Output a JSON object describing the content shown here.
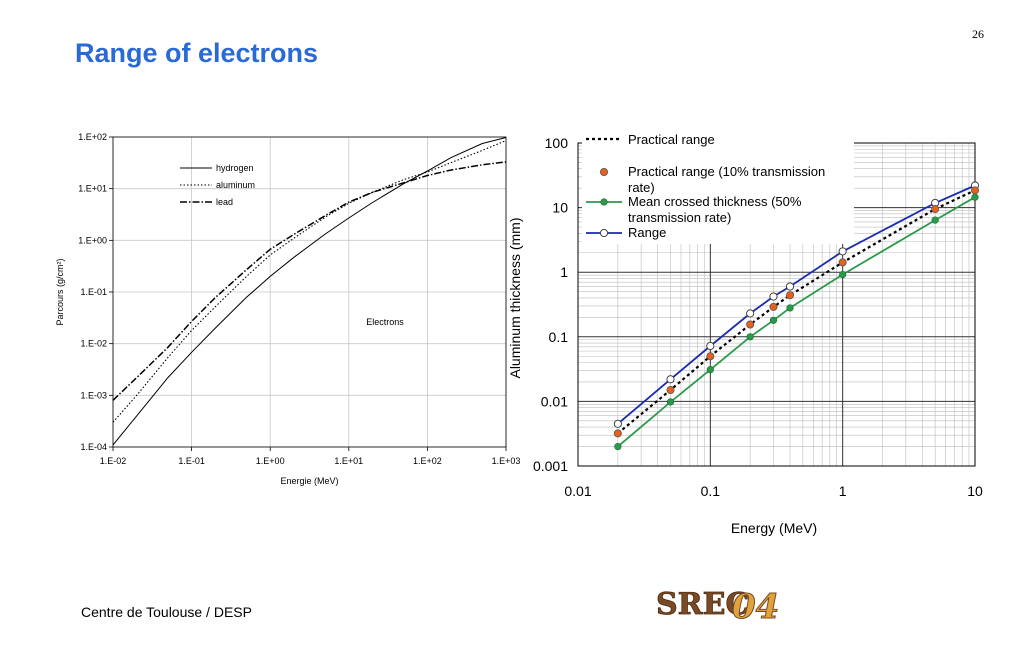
{
  "slide": {
    "title": "Range of electrons",
    "page_number": "26",
    "footer": "Centre de Toulouse / DESP",
    "logo_text": "SREC",
    "logo_numeral": "04"
  },
  "colors": {
    "title": "#2a6ad8",
    "range": "#1a2cb0",
    "mean": "#2a9a4a",
    "practical_point": "#e8601c",
    "logo_brown": "#7a4a24",
    "logo_orange": "#e0a23c"
  },
  "chart_data": [
    {
      "type": "line",
      "title": "",
      "xlabel": "Energie (MeV)",
      "ylabel": "Parcours (g/cm²)",
      "xscale": "log",
      "yscale": "log",
      "xlim": [
        0.01,
        1000
      ],
      "ylim": [
        0.0001,
        100
      ],
      "grid": true,
      "legend": "top-left",
      "annotation": "Electrons",
      "xtick_labels": [
        "1.E-02",
        "1.E-01",
        "1.E+00",
        "1.E+01",
        "1.E+02",
        "1.E+03"
      ],
      "ytick_labels": [
        "1.E-04",
        "1.E-03",
        "1.E-02",
        "1.E-01",
        "1.E+00",
        "1.E+01",
        "1.E+02"
      ],
      "series": [
        {
          "name": "hydrogen",
          "x": [
            0.01,
            0.02,
            0.05,
            0.1,
            0.2,
            0.5,
            1,
            2,
            5,
            10,
            20,
            50,
            100,
            200,
            500,
            1000
          ],
          "y": [
            0.00011,
            0.0004,
            0.0022,
            0.0068,
            0.02,
            0.079,
            0.2,
            0.47,
            1.32,
            2.7,
            5.4,
            12.5,
            22,
            40,
            75,
            98
          ]
        },
        {
          "name": "aluminum",
          "x": [
            0.01,
            0.02,
            0.05,
            0.1,
            0.2,
            0.5,
            1,
            2,
            5,
            10,
            20,
            50,
            100,
            200,
            500,
            1000
          ],
          "y": [
            0.0003,
            0.001,
            0.0054,
            0.018,
            0.052,
            0.2,
            0.52,
            1.1,
            2.8,
            5.2,
            8.5,
            15,
            21,
            32,
            55,
            85
          ]
        },
        {
          "name": "lead",
          "x": [
            0.01,
            0.02,
            0.05,
            0.1,
            0.2,
            0.5,
            1,
            2,
            5,
            10,
            20,
            50,
            100,
            200,
            500,
            1000
          ],
          "y": [
            0.0008,
            0.0022,
            0.0085,
            0.027,
            0.078,
            0.27,
            0.67,
            1.3,
            3.0,
            5.5,
            8.5,
            13,
            18,
            23,
            29,
            33
          ]
        }
      ]
    },
    {
      "type": "line",
      "title": "",
      "xlabel": "Energy (MeV)",
      "ylabel": "Aluminum thickness (mm)",
      "xscale": "log",
      "yscale": "log",
      "xlim": [
        0.01,
        10
      ],
      "ylim": [
        0.001,
        100
      ],
      "grid": true,
      "legend": "top-left",
      "xtick_labels": [
        "0.01",
        "0.1",
        "1",
        "10"
      ],
      "ytick_labels": [
        "0.001",
        "0.01",
        "0.1",
        "1",
        "10",
        "100"
      ],
      "series": [
        {
          "name": "Practical range",
          "marker": "none",
          "x": [
            0.02,
            0.05,
            0.1,
            0.2,
            0.3,
            0.4,
            1,
            5,
            10
          ],
          "y": [
            0.0032,
            0.015,
            0.05,
            0.155,
            0.29,
            0.44,
            1.42,
            9.5,
            18.5
          ]
        },
        {
          "name": "Practical range (10% transmission rate)",
          "marker": "filled-orange",
          "x": [
            0.02,
            0.05,
            0.1,
            0.2,
            0.3,
            0.4,
            1,
            5,
            10
          ],
          "y": [
            0.0032,
            0.015,
            0.05,
            0.155,
            0.29,
            0.44,
            1.42,
            9.5,
            18.5
          ]
        },
        {
          "name": "Mean crossed thickness (50% transmission rate)",
          "marker": "filled-green",
          "x": [
            0.02,
            0.05,
            0.1,
            0.2,
            0.3,
            0.4,
            1,
            5,
            10
          ],
          "y": [
            0.002,
            0.0098,
            0.031,
            0.1,
            0.18,
            0.28,
            0.92,
            6.4,
            14.5
          ]
        },
        {
          "name": "Range",
          "marker": "open-circle",
          "x": [
            0.02,
            0.05,
            0.1,
            0.2,
            0.3,
            0.4,
            1,
            5,
            10
          ],
          "y": [
            0.0045,
            0.022,
            0.072,
            0.23,
            0.42,
            0.6,
            2.1,
            11.8,
            22
          ]
        }
      ]
    }
  ]
}
